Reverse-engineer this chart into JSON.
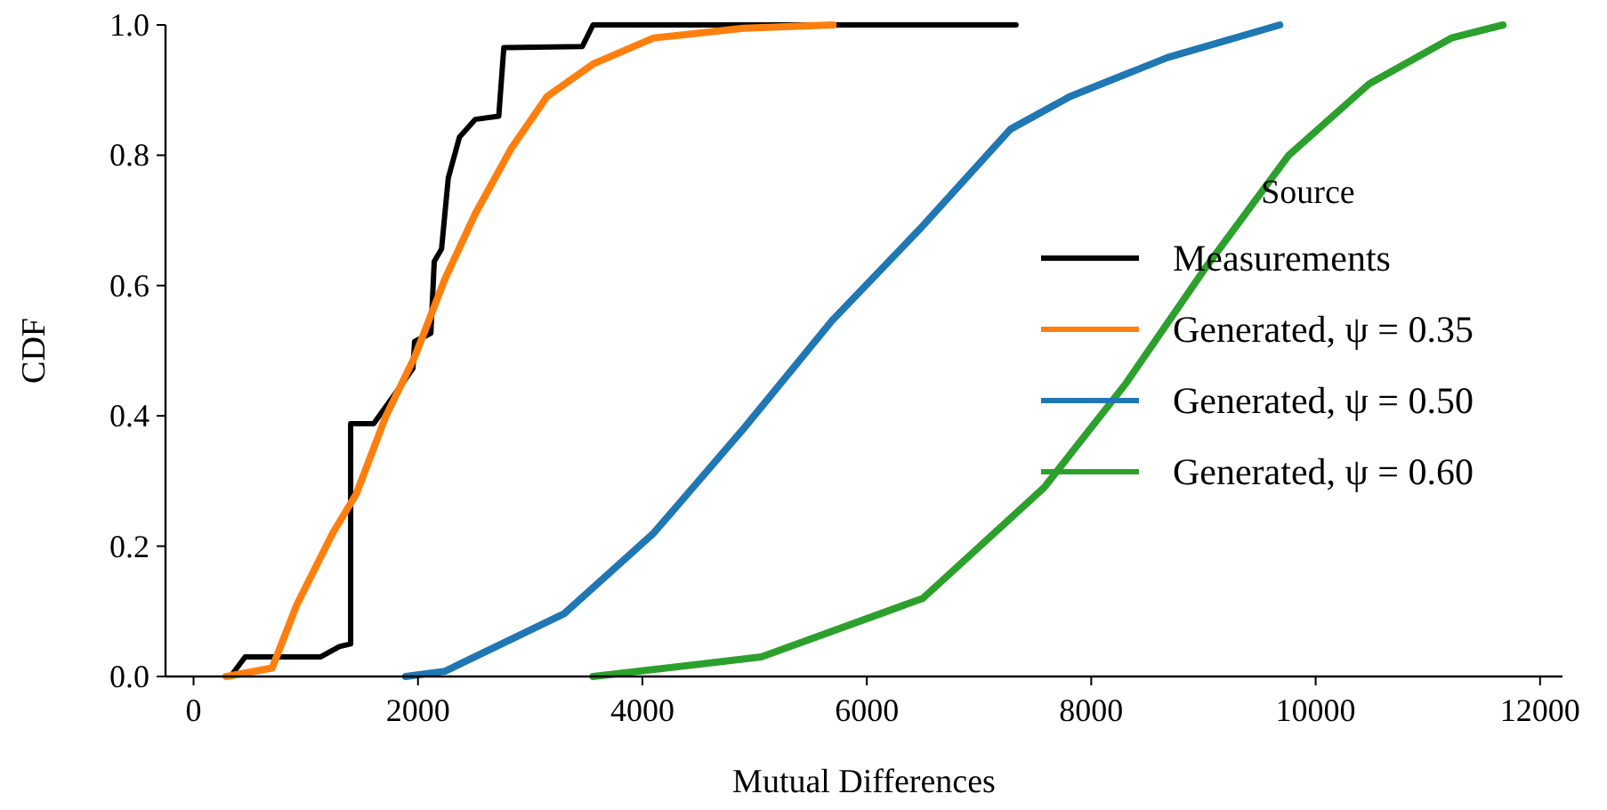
{
  "chart_data": {
    "type": "line",
    "xlabel": "Mutual Differences",
    "ylabel": "CDF",
    "legend_title": "Source",
    "legend": "right",
    "xlim": [
      -250,
      12200
    ],
    "ylim": [
      0,
      1
    ],
    "xticks": [
      0,
      2000,
      4000,
      6000,
      8000,
      10000,
      12000
    ],
    "yticks": [
      {
        "value": 0,
        "label": "0.0"
      },
      {
        "value": 0.2,
        "label": "0.2"
      },
      {
        "value": 0.4,
        "label": "0.4"
      },
      {
        "value": 0.6,
        "label": "0.6"
      },
      {
        "value": 0.8,
        "label": "0.8"
      },
      {
        "value": 1,
        "label": "1.0"
      }
    ],
    "series": [
      {
        "name": "Measurements",
        "color": "#000000",
        "x": [
          330,
          460,
          1130,
          1300,
          1400,
          1400,
          1605,
          1810,
          1955,
          1970,
          2115,
          2145,
          2210,
          2270,
          2370,
          2510,
          2720,
          2765,
          3465,
          3560,
          7330
        ],
        "values": [
          0,
          0.03,
          0.03,
          0.046,
          0.05,
          0.388,
          0.388,
          0.437,
          0.473,
          0.514,
          0.527,
          0.637,
          0.656,
          0.765,
          0.828,
          0.855,
          0.86,
          0.965,
          0.967,
          1,
          1
        ]
      },
      {
        "name": "Generated, ψ = 0.35",
        "color": "#ff7f0e",
        "x": [
          290,
          700,
          920,
          1240,
          1450,
          1715,
          1970,
          2240,
          2510,
          2830,
          3150,
          3560,
          4100,
          4900,
          5700
        ],
        "values": [
          0,
          0.013,
          0.11,
          0.22,
          0.28,
          0.4,
          0.49,
          0.61,
          0.71,
          0.81,
          0.89,
          0.94,
          0.98,
          0.995,
          1
        ]
      },
      {
        "name": "Generated, ψ = 0.50",
        "color": "#1f77b4",
        "x": [
          1890,
          2240,
          3300,
          4100,
          4900,
          5690,
          6490,
          7280,
          7810,
          8680,
          9680
        ],
        "values": [
          0,
          0.008,
          0.096,
          0.22,
          0.38,
          0.546,
          0.69,
          0.84,
          0.89,
          0.95,
          1
        ]
      },
      {
        "name": "Generated, ψ = 0.60",
        "color": "#2ca02c",
        "x": [
          3560,
          5060,
          6500,
          7580,
          8310,
          9030,
          9760,
          10480,
          11210,
          11670
        ],
        "values": [
          0,
          0.03,
          0.12,
          0.29,
          0.45,
          0.63,
          0.8,
          0.91,
          0.98,
          1
        ]
      }
    ]
  }
}
